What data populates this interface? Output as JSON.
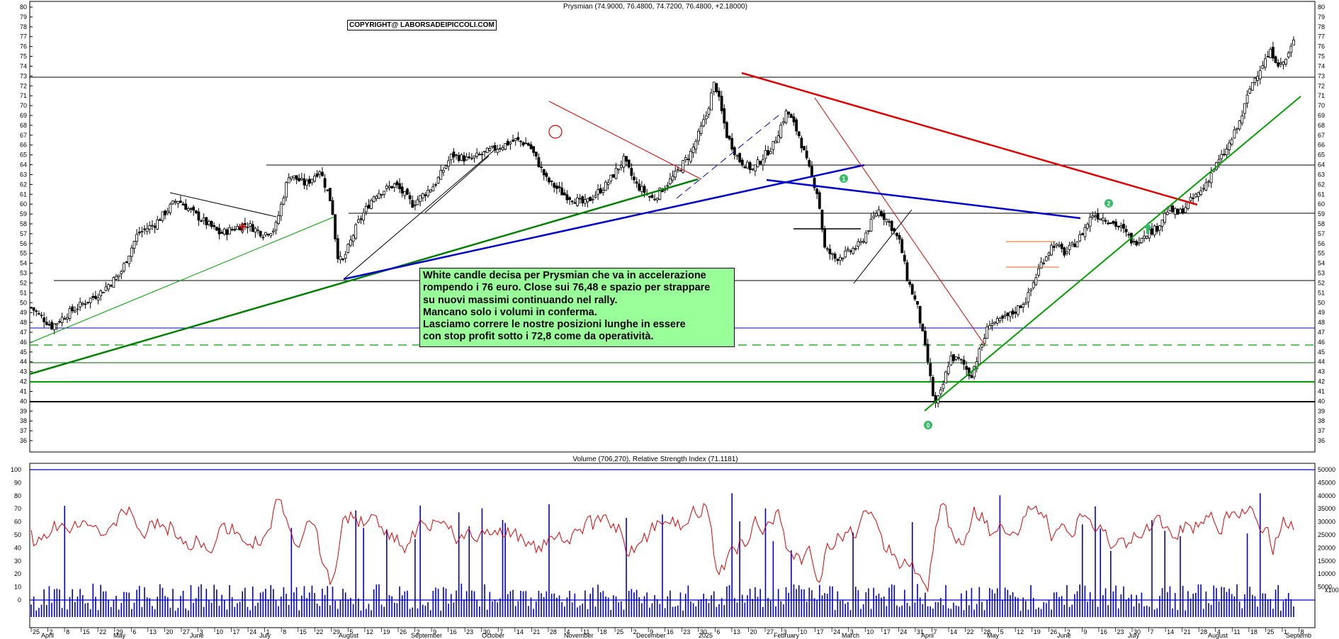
{
  "chart_data": [
    {
      "type": "candlestick",
      "title": "Prysmian (74.9000, 76.4800, 74.7200, 76.4800, +2.18000)",
      "ylim": [
        35,
        80
      ],
      "y_ticks": [
        36,
        37,
        38,
        39,
        40,
        41,
        42,
        43,
        44,
        45,
        46,
        47,
        48,
        49,
        50,
        51,
        52,
        53,
        54,
        55,
        56,
        57,
        58,
        59,
        60,
        61,
        62,
        63,
        64,
        65,
        66,
        67,
        68,
        69,
        70,
        71,
        72,
        73,
        74,
        75,
        76,
        77,
        78,
        79,
        80
      ],
      "price_path": [
        {
          "d": 0,
          "p": 49.5
        },
        {
          "d": 12,
          "p": 47.6
        },
        {
          "d": 22,
          "p": 49
        },
        {
          "d": 40,
          "p": 51
        },
        {
          "d": 52,
          "p": 53
        },
        {
          "d": 62,
          "p": 57
        },
        {
          "d": 72,
          "p": 58
        },
        {
          "d": 85,
          "p": 60.5
        },
        {
          "d": 95,
          "p": 59
        },
        {
          "d": 110,
          "p": 57
        },
        {
          "d": 125,
          "p": 58
        },
        {
          "d": 135,
          "p": 57
        },
        {
          "d": 142,
          "p": 57.5
        },
        {
          "d": 150,
          "p": 63
        },
        {
          "d": 160,
          "p": 62
        },
        {
          "d": 168,
          "p": 63.5
        },
        {
          "d": 175,
          "p": 60
        },
        {
          "d": 178,
          "p": 55
        },
        {
          "d": 181,
          "p": 54
        },
        {
          "d": 190,
          "p": 58
        },
        {
          "d": 200,
          "p": 61
        },
        {
          "d": 212,
          "p": 62
        },
        {
          "d": 222,
          "p": 60
        },
        {
          "d": 235,
          "p": 62
        },
        {
          "d": 245,
          "p": 65
        },
        {
          "d": 255,
          "p": 64.5
        },
        {
          "d": 268,
          "p": 65.5
        },
        {
          "d": 282,
          "p": 66.5
        },
        {
          "d": 290,
          "p": 66
        },
        {
          "d": 300,
          "p": 62.5
        },
        {
          "d": 310,
          "p": 61
        },
        {
          "d": 322,
          "p": 60
        },
        {
          "d": 335,
          "p": 62
        },
        {
          "d": 345,
          "p": 64.5
        },
        {
          "d": 352,
          "p": 62
        },
        {
          "d": 362,
          "p": 60.5
        },
        {
          "d": 375,
          "p": 63
        },
        {
          "d": 385,
          "p": 65.5
        },
        {
          "d": 393,
          "p": 69
        },
        {
          "d": 398,
          "p": 72.5
        },
        {
          "d": 405,
          "p": 67
        },
        {
          "d": 412,
          "p": 64.5
        },
        {
          "d": 420,
          "p": 63.5
        },
        {
          "d": 432,
          "p": 66
        },
        {
          "d": 440,
          "p": 69.5
        },
        {
          "d": 447,
          "p": 67
        },
        {
          "d": 452,
          "p": 64
        },
        {
          "d": 458,
          "p": 61
        },
        {
          "d": 462,
          "p": 55.5
        },
        {
          "d": 468,
          "p": 54.5
        },
        {
          "d": 475,
          "p": 55
        },
        {
          "d": 483,
          "p": 56
        },
        {
          "d": 493,
          "p": 59.5
        },
        {
          "d": 500,
          "p": 58
        },
        {
          "d": 506,
          "p": 56
        },
        {
          "d": 510,
          "p": 52.5
        },
        {
          "d": 516,
          "p": 49.5
        },
        {
          "d": 522,
          "p": 44
        },
        {
          "d": 526,
          "p": 39.5
        },
        {
          "d": 530,
          "p": 41
        },
        {
          "d": 535,
          "p": 44.5
        },
        {
          "d": 542,
          "p": 44
        },
        {
          "d": 547,
          "p": 42.5
        },
        {
          "d": 552,
          "p": 45
        },
        {
          "d": 558,
          "p": 48
        },
        {
          "d": 563,
          "p": 48
        },
        {
          "d": 572,
          "p": 49
        },
        {
          "d": 580,
          "p": 50.5
        },
        {
          "d": 588,
          "p": 54
        },
        {
          "d": 595,
          "p": 56
        },
        {
          "d": 602,
          "p": 55
        },
        {
          "d": 610,
          "p": 56.5
        },
        {
          "d": 618,
          "p": 59
        },
        {
          "d": 626,
          "p": 58.5
        },
        {
          "d": 635,
          "p": 57.5
        },
        {
          "d": 642,
          "p": 56
        },
        {
          "d": 648,
          "p": 57
        },
        {
          "d": 655,
          "p": 57.5
        },
        {
          "d": 662,
          "p": 59.5
        },
        {
          "d": 668,
          "p": 59
        },
        {
          "d": 676,
          "p": 60.5
        },
        {
          "d": 682,
          "p": 61.5
        },
        {
          "d": 688,
          "p": 63.5
        },
        {
          "d": 696,
          "p": 65.5
        },
        {
          "d": 704,
          "p": 68.5
        },
        {
          "d": 710,
          "p": 72
        },
        {
          "d": 716,
          "p": 74
        },
        {
          "d": 722,
          "p": 75.5
        },
        {
          "d": 727,
          "p": 74
        },
        {
          "d": 731,
          "p": 74.8
        },
        {
          "d": 735,
          "p": 76.48
        }
      ],
      "annotations_markers": [
        "0",
        "1",
        "2"
      ]
    },
    {
      "type": "line",
      "title": "Volume (706,270), Relative Strength Index (71.1181)",
      "rsi_ylim": [
        0,
        100
      ],
      "rsi_ticks": [
        0,
        10,
        20,
        30,
        40,
        50,
        60,
        70,
        80,
        90,
        100
      ],
      "volume_ticks": [
        "5000",
        "10000",
        "15000",
        "20000",
        "25000",
        "30000",
        "35000",
        "40000",
        "45000",
        "50000"
      ],
      "volume_axis_note": "x100",
      "series": [
        {
          "name": "Relative Strength Index",
          "color": "#e00000"
        },
        {
          "name": "Volume",
          "color": "#0000cc"
        }
      ]
    }
  ],
  "x_axis": {
    "day_labels": [
      "25",
      "2",
      "8",
      "15",
      "22",
      "29",
      "6",
      "13",
      "20",
      "27",
      "3",
      "10",
      "17",
      "24",
      "1",
      "8",
      "15",
      "22",
      "29",
      "5",
      "12",
      "19",
      "26",
      "2",
      "9",
      "16",
      "23",
      "30",
      "7",
      "14",
      "21",
      "28",
      "4",
      "11",
      "18",
      "25",
      "2",
      "9",
      "16",
      "23",
      "30",
      "6",
      "13",
      "20",
      "27",
      "3",
      "10",
      "17",
      "24",
      "3",
      "10",
      "17",
      "24",
      "31",
      "7",
      "14",
      "22",
      "28",
      "5",
      "12",
      "19",
      "26",
      "2",
      "9",
      "16",
      "23",
      "30",
      "7",
      "14",
      "21",
      "28",
      "4",
      "11",
      "18",
      "25",
      "1",
      "8"
    ],
    "month_labels": [
      "April",
      "May",
      "June",
      "July",
      "August",
      "September",
      "October",
      "November",
      "December",
      "2025",
      "February",
      "March",
      "April",
      "May",
      "June",
      "July",
      "August",
      "Septemb"
    ]
  },
  "copyright": "COPYRIGHT@ LABORSADEIPICCOLI.COM",
  "comment": [
    "White candle decisa per Prysmian che va in accelerazione",
    "rompendo i 76 euro. Close sui 76,48 e spazio per strappare",
    "su nuovi massimi continuando nel rally.",
    "Mancano solo i volumi in conferma.",
    "Lasciamo correre le nostre posizioni lunghe in essere",
    "con stop profit sotto i 72,8 come da operatività."
  ],
  "colors": {
    "candle": "#000000",
    "support": "#000000",
    "blue": "#0000cc",
    "green": "#00a000",
    "darkgreen": "#008000",
    "red": "#e00000",
    "note_bg": "#99ff99",
    "marker": "#33bb66"
  }
}
